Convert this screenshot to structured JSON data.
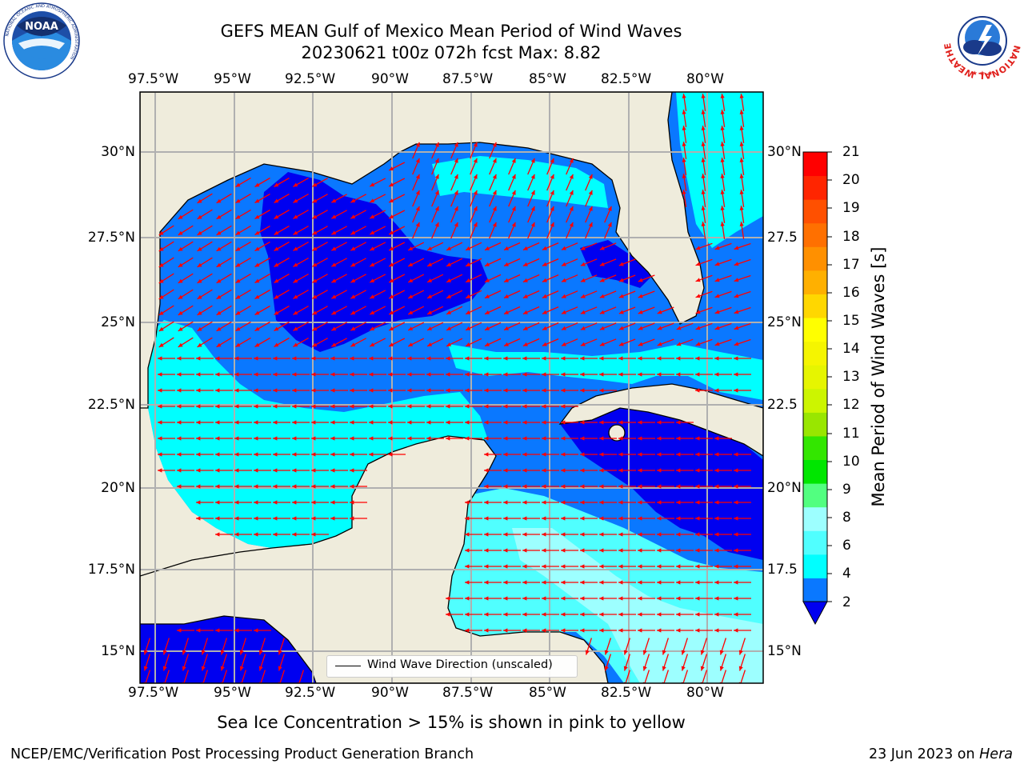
{
  "title": {
    "line1": "GEFS MEAN Gulf of Mexico Mean Period of Wind Waves",
    "line2": "20230621 t00z 072h fcst   Max: 8.82"
  },
  "map": {
    "lon_labels": [
      "97.5°W",
      "95°W",
      "92.5°W",
      "90°W",
      "87.5°W",
      "85°W",
      "82.5°W",
      "80°W"
    ],
    "lat_labels_left": [
      "30°N",
      "27.5°N",
      "25°N",
      "22.5°N",
      "20°N",
      "17.5°N",
      "15°N"
    ],
    "lat_labels_right": [
      "30°N",
      "27.5",
      "25°N",
      "22.5",
      "20°N",
      "17.5",
      "15°N"
    ],
    "legend_label": "Wind Wave Direction (unscaled)",
    "colors": {
      "land": "#efecdc",
      "ocean_2_4": "#0a78ff",
      "ocean_under2": "#0000f0",
      "ocean_4_6": "#00ffff",
      "ocean_6_8": "#50ffff",
      "ocean_8_9": "#9dffff",
      "arrow": "#ff0000"
    }
  },
  "colorbar": {
    "label": "Mean Period of Wind Waves [s]",
    "ticks": [
      "21",
      "20",
      "19",
      "18",
      "17",
      "16",
      "15",
      "14",
      "13",
      "12",
      "11",
      "10",
      "9",
      "8",
      "6",
      "4",
      "2"
    ],
    "colors": [
      "#0a78ff",
      "#00ffff",
      "#50ffff",
      "#9dffff",
      "#52ff80",
      "#00e600",
      "#33e600",
      "#99e600",
      "#ccf500",
      "#e6f500",
      "#f5f500",
      "#ffff00",
      "#ffd700",
      "#ffb000",
      "#ff9000",
      "#ff7000",
      "#ff5000",
      "#ff2500",
      "#ff0000"
    ],
    "under_color": "#0000f0"
  },
  "subtitle": "Sea Ice Concentration > 15% is shown in pink to yellow",
  "footer": {
    "left": "NCEP/EMC/Verification Post Processing Product Generation Branch",
    "right_prefix": "23 Jun 2023 on ",
    "right_machine": "Hera"
  },
  "logos": {
    "noaa_text": "NOAA",
    "noaa_ring": "NATIONAL OCEANIC AND ATMOSPHERIC ADMINISTRATION",
    "noaa_ring_bottom": "U.S. DEPARTMENT OF COMMERCE",
    "nws_ring": "NATIONAL WEATHER SERVICE"
  }
}
